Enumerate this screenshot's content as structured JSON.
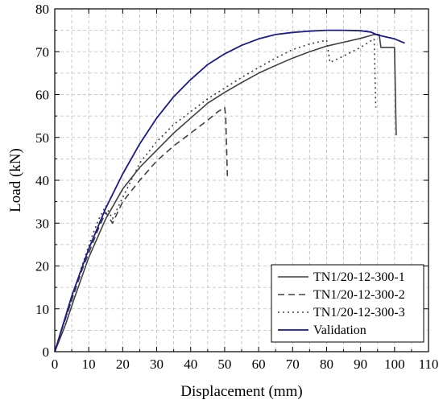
{
  "chart_data": {
    "type": "line",
    "xlabel": "Displacement (mm)",
    "ylabel": "Load (kN)",
    "xlim": [
      0,
      110
    ],
    "ylim": [
      0,
      80
    ],
    "xticks": [
      0,
      10,
      20,
      30,
      40,
      50,
      60,
      70,
      80,
      90,
      100,
      110
    ],
    "yticks": [
      0,
      10,
      20,
      30,
      40,
      50,
      60,
      70,
      80
    ],
    "xtick_labels": [
      "0",
      "10",
      "20",
      "30",
      "40",
      "50",
      "60",
      "70",
      "80",
      "90",
      "100",
      "110"
    ],
    "ytick_labels": [
      "0",
      "10",
      "20",
      "30",
      "40",
      "50",
      "60",
      "70",
      "80"
    ],
    "grid": true,
    "legend_position": "bottom-right",
    "series": [
      {
        "name": "TN1/20-12-300-1",
        "color": "#404040",
        "style": "solid",
        "points": [
          [
            0,
            0
          ],
          [
            3,
            6
          ],
          [
            6,
            13
          ],
          [
            10,
            22
          ],
          [
            15,
            31
          ],
          [
            20,
            38
          ],
          [
            25,
            43
          ],
          [
            30,
            47
          ],
          [
            35,
            51
          ],
          [
            40,
            54.5
          ],
          [
            45,
            58
          ],
          [
            50,
            60.5
          ],
          [
            55,
            62.8
          ],
          [
            60,
            65
          ],
          [
            65,
            66.8
          ],
          [
            70,
            68.5
          ],
          [
            75,
            70
          ],
          [
            80,
            71.3
          ],
          [
            85,
            72.2
          ],
          [
            90,
            73.1
          ],
          [
            94,
            74
          ],
          [
            95.5,
            74
          ],
          [
            96,
            71
          ],
          [
            100,
            71
          ],
          [
            100.5,
            50.5
          ]
        ]
      },
      {
        "name": "TN1/20-12-300-2",
        "color": "#404040",
        "style": "dashed",
        "points": [
          [
            0,
            0
          ],
          [
            2,
            5
          ],
          [
            5,
            12
          ],
          [
            8,
            19
          ],
          [
            11,
            25
          ],
          [
            13,
            29
          ],
          [
            15,
            32.5
          ],
          [
            17,
            30
          ],
          [
            20,
            35
          ],
          [
            25,
            40
          ],
          [
            30,
            44.5
          ],
          [
            35,
            48
          ],
          [
            40,
            51
          ],
          [
            45,
            54
          ],
          [
            48,
            56
          ],
          [
            50,
            57
          ],
          [
            50.3,
            55
          ],
          [
            50.8,
            41
          ]
        ]
      },
      {
        "name": "TN1/20-12-300-3",
        "color": "#404040",
        "style": "dotted",
        "points": [
          [
            0,
            0
          ],
          [
            2,
            5
          ],
          [
            5,
            12
          ],
          [
            8,
            20
          ],
          [
            11,
            27
          ],
          [
            13,
            31
          ],
          [
            15,
            34
          ],
          [
            17,
            31
          ],
          [
            20,
            36
          ],
          [
            25,
            44
          ],
          [
            30,
            49
          ],
          [
            35,
            53
          ],
          [
            40,
            56
          ],
          [
            45,
            59
          ],
          [
            50,
            61.5
          ],
          [
            55,
            64
          ],
          [
            60,
            66.3
          ],
          [
            65,
            68.5
          ],
          [
            70,
            70.5
          ],
          [
            75,
            71.8
          ],
          [
            80,
            72.7
          ],
          [
            81,
            67.5
          ],
          [
            85,
            69
          ],
          [
            90,
            71
          ],
          [
            94,
            73
          ],
          [
            94.5,
            57
          ]
        ]
      },
      {
        "name": "Validation",
        "color": "#1a1a8c",
        "style": "solid",
        "points": [
          [
            0,
            0
          ],
          [
            5,
            13
          ],
          [
            10,
            24
          ],
          [
            15,
            33.5
          ],
          [
            20,
            41.5
          ],
          [
            25,
            48.5
          ],
          [
            30,
            54.5
          ],
          [
            35,
            59.5
          ],
          [
            40,
            63.5
          ],
          [
            45,
            67
          ],
          [
            50,
            69.5
          ],
          [
            55,
            71.5
          ],
          [
            60,
            73
          ],
          [
            65,
            74
          ],
          [
            70,
            74.5
          ],
          [
            75,
            74.8
          ],
          [
            80,
            75
          ],
          [
            85,
            75
          ],
          [
            90,
            74.9
          ],
          [
            93,
            74.6
          ],
          [
            95,
            73.9
          ],
          [
            100,
            73
          ],
          [
            103,
            72
          ]
        ]
      }
    ]
  }
}
